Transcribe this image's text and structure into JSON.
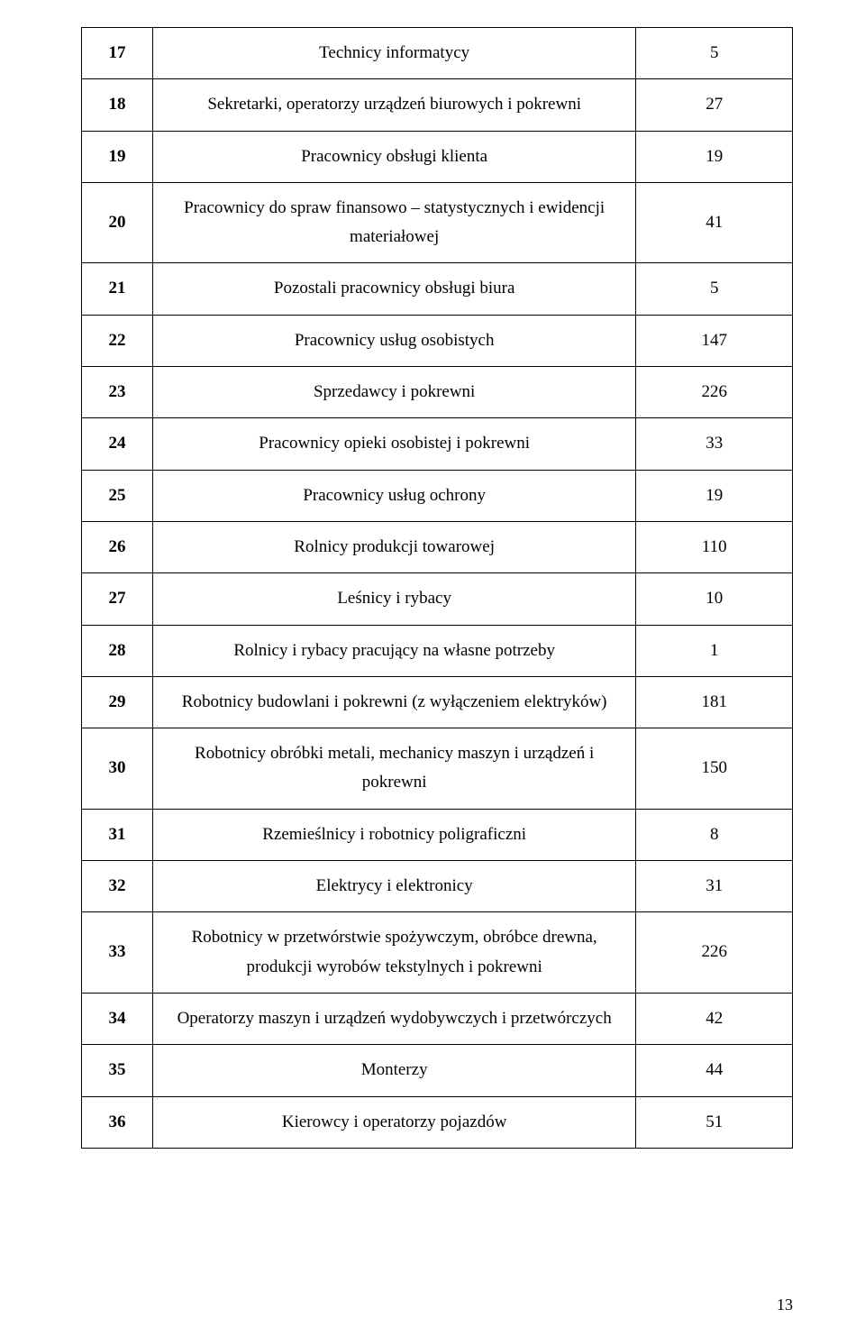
{
  "page_number": "13",
  "table": {
    "col_widths_pct": [
      10,
      68,
      22
    ],
    "border_color": "#000000",
    "font": {
      "family": "Times New Roman",
      "size_pt": 14,
      "line_height": 1.7
    },
    "rows": [
      {
        "num": "17",
        "desc": "Technicy informatycy",
        "val": "5"
      },
      {
        "num": "18",
        "desc": "Sekretarki, operatorzy urządzeń biurowych i pokrewni",
        "val": "27"
      },
      {
        "num": "19",
        "desc": "Pracownicy obsługi klienta",
        "val": "19"
      },
      {
        "num": "20",
        "desc": "Pracownicy do spraw finansowo – statystycznych i ewidencji materiałowej",
        "val": "41"
      },
      {
        "num": "21",
        "desc": "Pozostali pracownicy obsługi biura",
        "val": "5"
      },
      {
        "num": "22",
        "desc": "Pracownicy usług osobistych",
        "val": "147"
      },
      {
        "num": "23",
        "desc": "Sprzedawcy i pokrewni",
        "val": "226"
      },
      {
        "num": "24",
        "desc": "Pracownicy opieki osobistej i pokrewni",
        "val": "33"
      },
      {
        "num": "25",
        "desc": "Pracownicy usług ochrony",
        "val": "19"
      },
      {
        "num": "26",
        "desc": "Rolnicy produkcji towarowej",
        "val": "110"
      },
      {
        "num": "27",
        "desc": "Leśnicy i rybacy",
        "val": "10"
      },
      {
        "num": "28",
        "desc": "Rolnicy i rybacy pracujący na własne potrzeby",
        "val": "1"
      },
      {
        "num": "29",
        "desc": "Robotnicy budowlani i pokrewni (z wyłączeniem elektryków)",
        "val": "181"
      },
      {
        "num": "30",
        "desc": "Robotnicy obróbki metali, mechanicy maszyn i urządzeń i pokrewni",
        "val": "150"
      },
      {
        "num": "31",
        "desc": "Rzemieślnicy i robotnicy poligraficzni",
        "val": "8"
      },
      {
        "num": "32",
        "desc": "Elektrycy i elektronicy",
        "val": "31"
      },
      {
        "num": "33",
        "desc": "Robotnicy w przetwórstwie spożywczym, obróbce drewna, produkcji wyrobów tekstylnych i pokrewni",
        "val": "226"
      },
      {
        "num": "34",
        "desc": "Operatorzy maszyn i urządzeń wydobywczych i przetwórczych",
        "val": "42"
      },
      {
        "num": "35",
        "desc": "Monterzy",
        "val": "44"
      },
      {
        "num": "36",
        "desc": "Kierowcy i operatorzy pojazdów",
        "val": "51"
      }
    ]
  }
}
